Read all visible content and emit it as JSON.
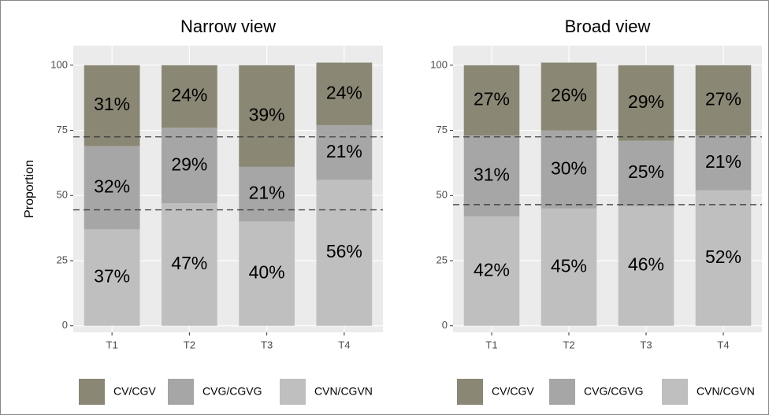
{
  "chart_data": [
    {
      "type": "bar",
      "stacked": true,
      "title": "Narrow view",
      "ylabel": "Proportion",
      "categories": [
        "T1",
        "T2",
        "T3",
        "T4"
      ],
      "series": [
        {
          "name": "CV/CGV",
          "color": "#8a8775",
          "values": [
            31,
            24,
            39,
            24
          ],
          "value_labels": [
            "31%",
            "24%",
            "39%",
            "24%"
          ]
        },
        {
          "name": "CVG/CGVG",
          "color": "#a6a6a6",
          "values": [
            32,
            29,
            21,
            21
          ],
          "value_labels": [
            "32%",
            "29%",
            "21%",
            "21%"
          ]
        },
        {
          "name": "CVN/CGVN",
          "color": "#bfbfbf",
          "values": [
            37,
            47,
            40,
            56
          ],
          "value_labels": [
            "37%",
            "47%",
            "40%",
            "56%"
          ]
        }
      ],
      "ylim": [
        -2.5,
        107.5
      ],
      "yticks": [
        0,
        25,
        50,
        75,
        100
      ],
      "grid": true,
      "hlines": [
        72.5,
        44.5
      ],
      "legend": "bottom"
    },
    {
      "type": "bar",
      "stacked": true,
      "title": "Broad view",
      "categories": [
        "T1",
        "T2",
        "T3",
        "T4"
      ],
      "series": [
        {
          "name": "CV/CGV",
          "color": "#8a8775",
          "values": [
            27,
            26,
            29,
            27
          ],
          "value_labels": [
            "27%",
            "26%",
            "29%",
            "27%"
          ]
        },
        {
          "name": "CVG/CGVG",
          "color": "#a6a6a6",
          "values": [
            31,
            30,
            25,
            21
          ],
          "value_labels": [
            "31%",
            "30%",
            "25%",
            "21%"
          ]
        },
        {
          "name": "CVN/CGVN",
          "color": "#bfbfbf",
          "values": [
            42,
            45,
            46,
            52
          ],
          "value_labels": [
            "42%",
            "45%",
            "46%",
            "52%"
          ]
        }
      ],
      "ylim": [
        -2.5,
        107.5
      ],
      "yticks": [
        0,
        25,
        50,
        75,
        100
      ],
      "grid": true,
      "hlines": [
        72.5,
        46.5
      ],
      "legend": "bottom"
    }
  ]
}
